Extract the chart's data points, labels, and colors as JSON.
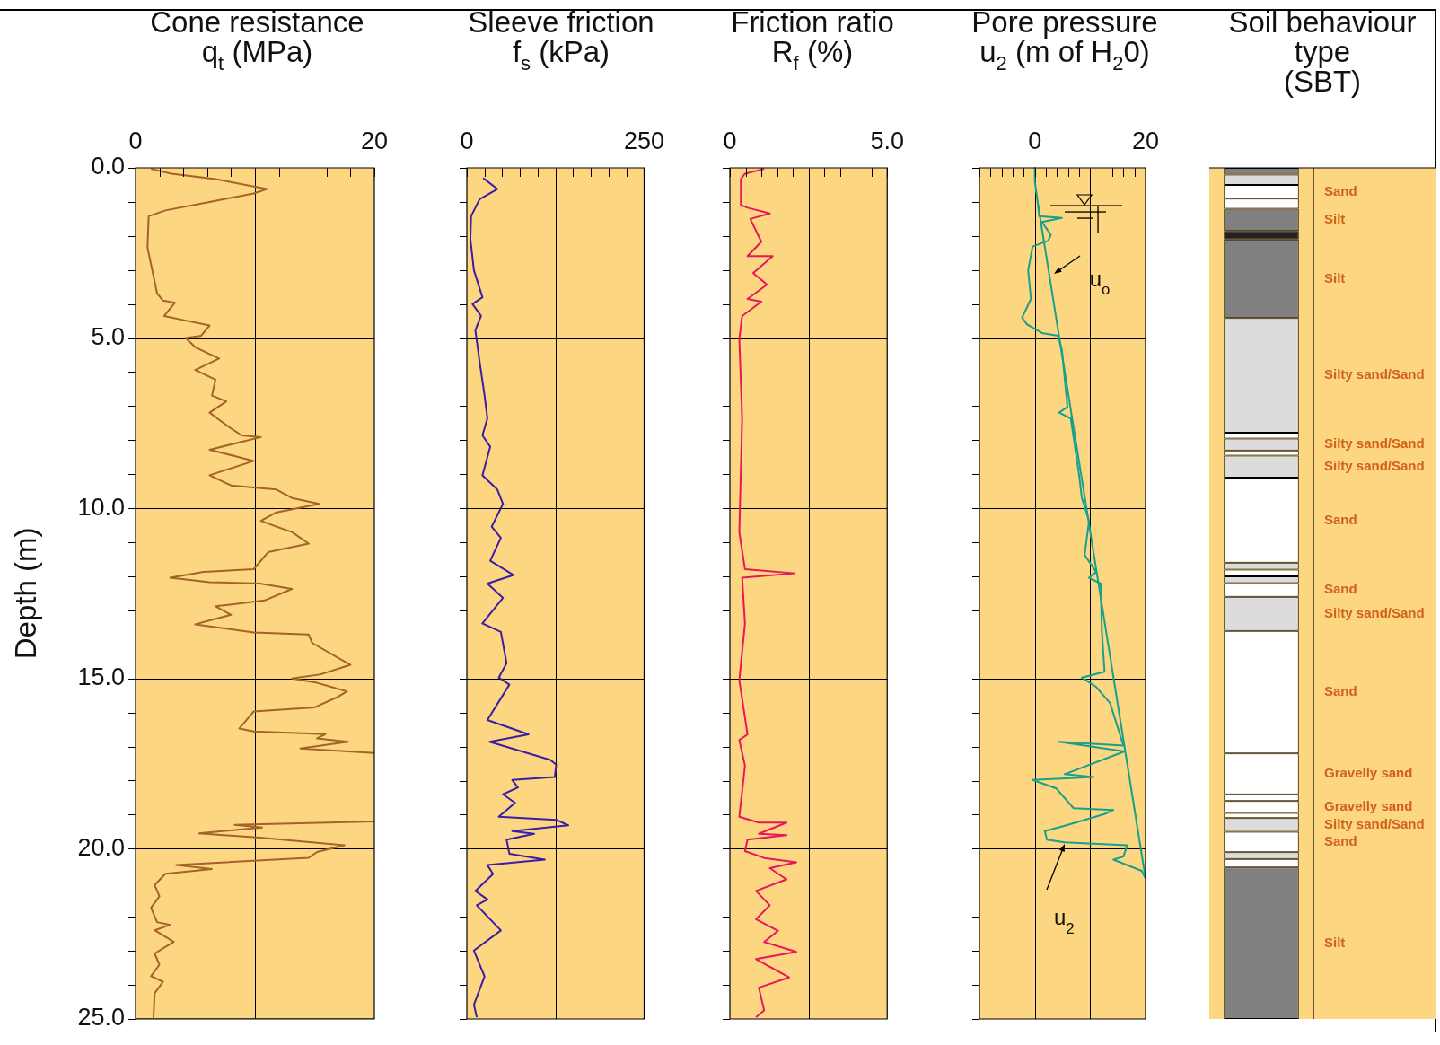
{
  "chart_data": [
    {
      "type": "line",
      "title": "Cone resistance\nq$_{t}$ (MPa)",
      "ylabel": "Depth (m)",
      "xlim": [
        0,
        20
      ],
      "xticks": [
        0,
        {
          "value": 10,
          "label": null
        },
        20
      ],
      "ylim": [
        25,
        0
      ],
      "yticks": [
        {
          "value": 0,
          "label": "0.0"
        },
        {
          "value": 5,
          "label": "5.0"
        },
        {
          "value": 10,
          "label": "10.0"
        },
        {
          "value": 15,
          "label": "15.0"
        },
        {
          "value": 20,
          "label": "20.0"
        },
        {
          "value": 25,
          "label": "25.0"
        }
      ],
      "grid": true,
      "series": [
        {
          "color": "#a5622a",
          "x": [
            1.3,
            3.0,
            6.7,
            11.0,
            9.9,
            6.2,
            2.5,
            1.1,
            1.0,
            1.3,
            1.6,
            1.8,
            2.3,
            3.3,
            2.4,
            4.4,
            6.2,
            5.5,
            4.2,
            5.0,
            7.0,
            5.0,
            6.7,
            6.4,
            7.6,
            6.2,
            7.8,
            8.9,
            10.5,
            6.2,
            9.9,
            6.2,
            8.0,
            11.8,
            13.1,
            15.4,
            11.8,
            10.5,
            11.8,
            13.1,
            14.5,
            11.1,
            9.9,
            5.7,
            2.9,
            6.2,
            10.4,
            13.1,
            10.8,
            6.7,
            8.0,
            5.0,
            9.9,
            14.5,
            14.8,
            18.0,
            15.5,
            13.1,
            15.2,
            17.7,
            16.9,
            15.0,
            9.9,
            8.7,
            9.9,
            15.9,
            15.2,
            17.8,
            13.8,
            20.0,
            null,
            20.0,
            8.3,
            10.6,
            5.3,
            10.4,
            17.5,
            15.2,
            14.5,
            3.4,
            6.4,
            2.5,
            1.6,
            2.0,
            1.3,
            1.8,
            2.9,
            1.6,
            3.2,
            1.6,
            2.0,
            1.3,
            2.3,
            1.6,
            1.5
          ],
          "values": [
            0.03,
            0.17,
            0.33,
            0.62,
            0.75,
            1.0,
            1.25,
            1.42,
            2.34,
            2.84,
            3.34,
            3.68,
            3.9,
            3.96,
            4.35,
            4.5,
            4.63,
            4.93,
            5.0,
            5.27,
            5.6,
            5.94,
            6.22,
            6.69,
            6.86,
            7.19,
            7.61,
            7.86,
            7.91,
            8.28,
            8.61,
            9.03,
            9.33,
            9.45,
            9.7,
            9.87,
            10.12,
            10.37,
            10.54,
            10.7,
            11.04,
            11.29,
            11.79,
            11.87,
            12.04,
            12.17,
            12.21,
            12.37,
            12.71,
            12.88,
            13.13,
            13.41,
            13.65,
            13.71,
            13.96,
            14.6,
            14.88,
            15.0,
            15.13,
            15.38,
            15.55,
            15.85,
            15.97,
            16.47,
            16.56,
            16.64,
            16.76,
            16.86,
            17.06,
            17.19,
            null,
            19.2,
            19.3,
            19.38,
            19.55,
            19.68,
            19.9,
            20.1,
            20.27,
            20.48,
            20.6,
            20.74,
            21.07,
            21.4,
            21.74,
            22.16,
            22.24,
            22.4,
            22.74,
            23.08,
            23.41,
            23.75,
            23.91,
            24.25,
            24.97
          ]
        }
      ]
    },
    {
      "type": "line",
      "title": "Sleeve friction\nf$_{s}$ (kPa)",
      "xlim": [
        0,
        250
      ],
      "xticks": [
        0,
        {
          "value": 125,
          "label": null
        },
        250
      ],
      "ylim": [
        25,
        0
      ],
      "yticks": [
        0,
        5,
        10,
        15,
        20,
        25
      ],
      "grid": true,
      "tick_labels": "x",
      "series": [
        {
          "color": "#3b1ea3",
          "x": [
            23,
            43,
            18,
            6,
            5,
            10,
            22,
            8,
            20,
            12,
            18,
            25,
            29,
            22,
            33,
            22,
            43,
            51,
            35,
            48,
            33,
            66,
            29,
            51,
            22,
            48,
            56,
            45,
            60,
            29,
            87,
            32,
            118,
            126,
            124,
            64,
            72,
            51,
            68,
            45,
            126,
            143,
            64,
            95,
            56,
            60,
            110,
            29,
            37,
            12,
            29,
            14,
            48,
            10,
            25,
            10,
            14
          ],
          "values": [
            0.3,
            0.62,
            0.92,
            1.42,
            2.09,
            3.01,
            3.8,
            4.0,
            4.35,
            4.77,
            5.69,
            6.69,
            7.36,
            7.86,
            8.19,
            9.03,
            9.45,
            9.87,
            10.54,
            10.87,
            11.54,
            11.96,
            12.21,
            12.63,
            13.38,
            13.63,
            14.55,
            14.97,
            15.18,
            16.22,
            16.64,
            16.86,
            17.39,
            17.53,
            17.89,
            17.98,
            18.2,
            18.4,
            18.65,
            19.06,
            19.15,
            19.31,
            19.48,
            19.56,
            19.73,
            20.15,
            20.32,
            20.48,
            20.74,
            21.24,
            21.49,
            21.66,
            22.4,
            22.99,
            23.75,
            24.58,
            24.95
          ]
        }
      ]
    },
    {
      "type": "line",
      "title": "Friction ratio\nR$_{f}$ (%)",
      "xlim": [
        0,
        5
      ],
      "xticks": [
        0,
        {
          "value": 2.5,
          "label": null
        },
        {
          "value": 5,
          "label": "5.0"
        }
      ],
      "ylim": [
        25,
        0
      ],
      "yticks": [
        0,
        5,
        10,
        15,
        20,
        25
      ],
      "grid": true,
      "tick_labels": "x",
      "series": [
        {
          "color": "#e8175d",
          "x": [
            1.09,
            0.48,
            0.35,
            0.35,
            0.56,
            1.27,
            0.65,
            1.0,
            0.56,
            1.36,
            0.74,
            1.18,
            0.56,
            1.0,
            0.39,
            0.3,
            0.39,
            0.3,
            0.48,
            2.06,
            0.39,
            0.48,
            0.3,
            0.56,
            0.3,
            0.48,
            0.3,
            0.92,
            1.8,
            0.92,
            1.8,
            0.56,
            0.48,
            1.09,
            2.11,
            1.27,
            1.8,
            0.83,
            1.27,
            0.83,
            1.53,
            1.09,
            2.11,
            0.83,
            1.88,
            0.92,
            1.09,
            0.83
          ],
          "values": [
            0.03,
            0.17,
            0.33,
            1.09,
            1.17,
            1.34,
            1.5,
            2.17,
            2.59,
            2.59,
            3.09,
            3.43,
            3.85,
            3.93,
            4.35,
            5.02,
            7.36,
            10.7,
            11.79,
            11.91,
            12.04,
            13.38,
            15.05,
            16.64,
            16.81,
            17.56,
            19.06,
            19.23,
            19.23,
            19.56,
            19.6,
            19.73,
            20.07,
            20.27,
            20.4,
            20.57,
            20.9,
            21.24,
            21.66,
            22.07,
            22.41,
            22.74,
            23.03,
            23.24,
            23.78,
            24.08,
            24.75,
            24.95
          ]
        }
      ]
    },
    {
      "type": "line",
      "title": "Pore pressure\nu$_{2}$ (m of H$_{2}$0)",
      "xlim": [
        -10,
        20
      ],
      "xticks": [
        0,
        {
          "value": 10,
          "label": null
        },
        20
      ],
      "ylim": [
        25,
        0
      ],
      "yticks": [
        0,
        5,
        10,
        15,
        20,
        25
      ],
      "grid": true,
      "tick_labels": "x",
      "annotations": [
        {
          "text": "u$_{o}$",
          "x": 3.4,
          "y": 3.1
        },
        {
          "text": "u$_{2}$",
          "x": 5.4,
          "y": 19.87
        }
      ],
      "series": [
        {
          "color": "#17a08b",
          "x": [
            0,
            0,
            0.6,
            0.8,
            4.9,
            1.3,
            2.9,
            2.4,
            -0.4,
            -1.2,
            -0.7,
            -2.3,
            -1.4,
            1.3,
            4.2,
            4.9,
            5.9,
            4.4,
            6.5,
            8.0,
            8.5,
            9.8,
            9.0,
            11.1,
            9.8,
            11.9,
            12.1,
            12.6,
            8.5,
            11.1,
            13.6,
            16.0,
            4.4,
            16.2,
            5.4,
            10.6,
            -0.4,
            3.9,
            7.0,
            14.2,
            12.6,
            5.7,
            1.8,
            2.2,
            5.4,
            16.7,
            16.0,
            14.2,
            19.3,
            20.0
          ],
          "values": [
            0,
            0.4,
            1.09,
            1.42,
            1.47,
            1.59,
            1.97,
            2.14,
            2.31,
            3.01,
            3.85,
            4.4,
            4.6,
            4.85,
            4.93,
            5.35,
            7.02,
            7.19,
            7.36,
            9.03,
            9.7,
            10.37,
            11.37,
            11.87,
            12.04,
            12.21,
            13.55,
            14.8,
            14.97,
            15.25,
            15.72,
            16.97,
            16.86,
            17.14,
            17.81,
            17.89,
            17.98,
            18.23,
            18.81,
            18.86,
            18.98,
            19.31,
            19.48,
            19.73,
            19.81,
            19.9,
            20.23,
            20.32,
            20.65,
            20.87
          ]
        },
        {
          "color": "#17a08b",
          "x": [
            0.6,
            20.0
          ],
          "values": [
            1.09,
            20.87
          ]
        }
      ]
    },
    {
      "type": "bar",
      "stacked": true,
      "title": "Soil behaviour\ntype\n(SBT)",
      "categories": [
        null
      ],
      "ylim": [
        25,
        0
      ],
      "tick_labels": false,
      "series": [
        {
          "color": "#808080",
          "values": [
            0.2
          ]
        },
        {
          "color": "#dcdcdc",
          "values": [
            0.3
          ]
        },
        {
          "name": "Sand",
          "color": "#ffffff",
          "values": [
            0.4
          ]
        },
        {
          "color": "#ffffff",
          "values": [
            0.3
          ]
        },
        {
          "name": "Silt",
          "color": "#808080",
          "values": [
            0.65
          ]
        },
        {
          "color": "#222222",
          "values": [
            0.25
          ]
        },
        {
          "name": "Silt",
          "color": "#808080",
          "values": [
            2.31
          ]
        },
        {
          "name": "Silty sand/Sand",
          "color": "#dcdcdc",
          "values": [
            3.37
          ]
        },
        {
          "color": "#ffffff",
          "values": [
            0.17
          ]
        },
        {
          "name": "Silty sand/Sand",
          "color": "#dcdcdc",
          "values": [
            0.35
          ]
        },
        {
          "color": "#ffffff",
          "values": [
            0.15
          ]
        },
        {
          "name": "Silty sand/Sand",
          "color": "#dcdcdc",
          "values": [
            0.65
          ]
        },
        {
          "name": "Sand",
          "color": "#ffffff",
          "values": [
            2.5
          ]
        },
        {
          "color": "#dcdcdc",
          "values": [
            0.2
          ]
        },
        {
          "color": "#ffffff",
          "values": [
            0.2
          ]
        },
        {
          "color": "#dcdcdc",
          "values": [
            0.2
          ]
        },
        {
          "name": "Sand",
          "color": "#ffffff",
          "values": [
            0.4
          ]
        },
        {
          "name": "Silty sand/Sand",
          "color": "#dcdcdc",
          "values": [
            1.0
          ]
        },
        {
          "name": "Sand",
          "color": "#ffffff",
          "values": [
            3.6
          ]
        },
        {
          "name": "Gravelly sand",
          "color": "#ffffff",
          "values": [
            1.2
          ]
        },
        {
          "color": "#ffffff",
          "values": [
            0.2
          ]
        },
        {
          "name": "Gravelly sand",
          "color": "#ffffff",
          "values": [
            0.35
          ]
        },
        {
          "color": "#ffffff",
          "values": [
            0.15
          ]
        },
        {
          "name": "Silty sand/Sand",
          "color": "#dcdcdc",
          "values": [
            0.4
          ]
        },
        {
          "name": "Sand",
          "color": "#ffffff",
          "values": [
            0.6
          ]
        },
        {
          "color": "#dcdcdc",
          "values": [
            0.2
          ]
        },
        {
          "color": "#ffffff",
          "values": [
            0.25
          ]
        },
        {
          "name": "Silt",
          "color": "#808080",
          "values": [
            4.45
          ]
        }
      ]
    }
  ]
}
